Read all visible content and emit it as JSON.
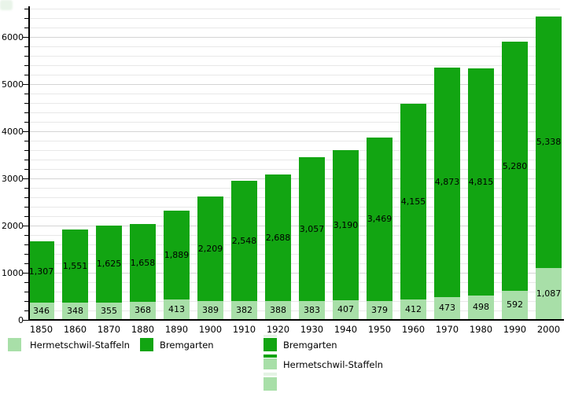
{
  "chart_data": {
    "type": "bar",
    "stacked": true,
    "title": "",
    "xlabel": "",
    "ylabel": "",
    "categories": [
      "1850",
      "1860",
      "1870",
      "1880",
      "1890",
      "1900",
      "1910",
      "1920",
      "1930",
      "1940",
      "1950",
      "1960",
      "1970",
      "1980",
      "1990",
      "2000"
    ],
    "series": [
      {
        "name": "Hermetschwil-Staffeln",
        "color": "#a8dfa8",
        "values": [
          346,
          348,
          355,
          368,
          413,
          389,
          382,
          388,
          383,
          407,
          379,
          412,
          473,
          498,
          592,
          1087
        ]
      },
      {
        "name": "Bremgarten",
        "color": "#12a512",
        "values": [
          1307,
          1551,
          1625,
          1658,
          1889,
          2209,
          2548,
          2688,
          3057,
          3190,
          3469,
          4155,
          4873,
          4815,
          5280,
          5338
        ]
      }
    ],
    "value_labels": true,
    "value_label_format": "thousands-comma",
    "ylim": [
      0,
      6660
    ],
    "y_major_step": 1000,
    "y_major_ticks": [
      0,
      1000,
      2000,
      3000,
      4000,
      5000,
      6000
    ],
    "y_minor_step": 200,
    "grid": true,
    "legend_position": "bottom"
  },
  "legend_bottom": {
    "items": [
      {
        "label": "Hermetschwil-Staffeln",
        "color": "#a8dfa8"
      },
      {
        "label": "Bremgarten",
        "color": "#12a512"
      }
    ]
  },
  "legend_right": {
    "items": [
      {
        "label": "Bremgarten",
        "color": "#12a512"
      },
      {
        "label": "Hermetschwil-Staffeln",
        "color": "#a8dfa8"
      },
      {
        "label": "",
        "color": "#a8dfa8"
      }
    ]
  },
  "colors": {
    "dark_green": "#12a512",
    "light_green": "#a8dfa8",
    "pale_green": "#e4f3e4",
    "grid_minor": "#e8e8e8",
    "grid_major": "#d4d4d4",
    "axis": "#000000",
    "text": "#000000",
    "background": "#ffffff"
  }
}
